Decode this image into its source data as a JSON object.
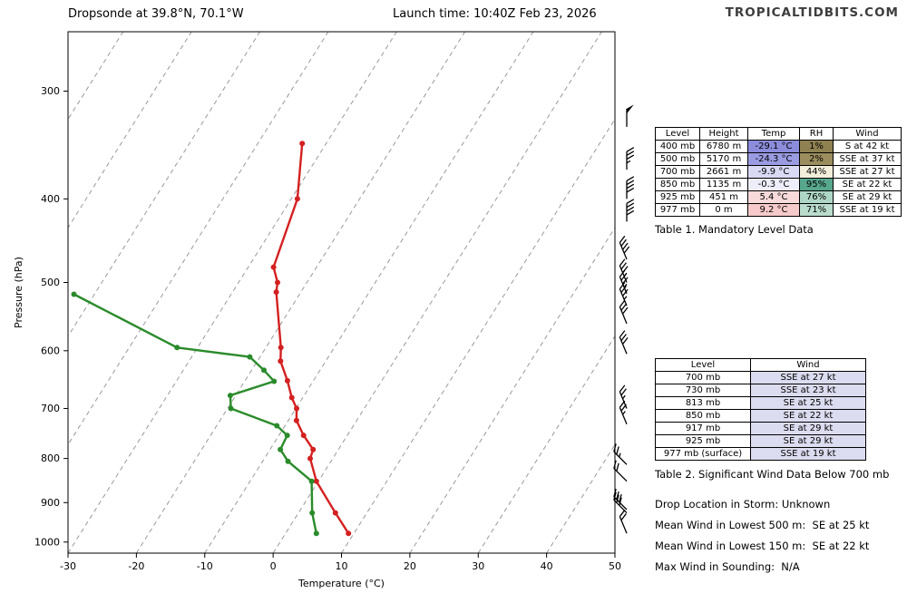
{
  "header": {
    "title": "Dropsonde at 39.8°N, 70.1°W",
    "launch": "Launch time: 10:40Z Feb 23, 2026",
    "brand": "TROPICALTIDBITS.COM"
  },
  "chart_data": {
    "type": "line",
    "subtype": "skew-t-log-p-sounding",
    "xlabel": "Temperature (°C)",
    "ylabel": "Pressure (hPa)",
    "x_ticks": [
      -30,
      -20,
      -10,
      0,
      10,
      20,
      30,
      40,
      50
    ],
    "y_ticks": [
      300,
      400,
      500,
      600,
      700,
      800,
      900,
      1000
    ],
    "xlim": [
      -30,
      50
    ],
    "plim": [
      256,
      1030
    ],
    "y_scale": "log-pressure",
    "grid": "dashed diagonal skewed isotherms every 10 C",
    "isotherm_color": "#999999",
    "series": [
      {
        "name": "temperature",
        "color": "#d42020",
        "points": [
          [
            345,
            -33.5
          ],
          [
            400,
            -29.1
          ],
          [
            480,
            -26.3
          ],
          [
            500,
            -24.3
          ],
          [
            513,
            -23.6
          ],
          [
            595,
            -17.8
          ],
          [
            617,
            -16.6
          ],
          [
            650,
            -13.8
          ],
          [
            680,
            -11.6
          ],
          [
            700,
            -9.9
          ],
          [
            723,
            -8.8
          ],
          [
            752,
            -6.4
          ],
          [
            781,
            -3.7
          ],
          [
            800,
            -3.3
          ],
          [
            850,
            -0.3
          ],
          [
            925,
            5.4
          ],
          [
            977,
            9.2
          ]
        ]
      },
      {
        "name": "dewpoint",
        "color": "#2a8b2a",
        "points": [
          [
            516,
            -53
          ],
          [
            595,
            -33
          ],
          [
            610,
            -21.5
          ],
          [
            632,
            -18.2
          ],
          [
            651,
            -15.7
          ],
          [
            676,
            -20.8
          ],
          [
            700,
            -19.5
          ],
          [
            733,
            -11.2
          ],
          [
            752,
            -8.8
          ],
          [
            781,
            -8.5
          ],
          [
            806,
            -6.3
          ],
          [
            850,
            -1.0
          ],
          [
            925,
            2.0
          ],
          [
            977,
            4.5
          ]
        ]
      }
    ],
    "wind_barbs": [
      {
        "p": 330,
        "dir": "S",
        "spd": 50
      },
      {
        "p": 370,
        "dir": "S",
        "spd": 35
      },
      {
        "p": 400,
        "dir": "S",
        "spd": 42
      },
      {
        "p": 425,
        "dir": "S",
        "spd": 40
      },
      {
        "p": 470,
        "dir": "SSE",
        "spd": 38
      },
      {
        "p": 500,
        "dir": "SSE",
        "spd": 37
      },
      {
        "p": 515,
        "dir": "SSE",
        "spd": 35
      },
      {
        "p": 532,
        "dir": "SSE",
        "spd": 33
      },
      {
        "p": 558,
        "dir": "SSE",
        "spd": 30
      },
      {
        "p": 605,
        "dir": "SSE",
        "spd": 28
      },
      {
        "p": 700,
        "dir": "SSE",
        "spd": 27
      },
      {
        "p": 730,
        "dir": "SSE",
        "spd": 23
      },
      {
        "p": 813,
        "dir": "SE",
        "spd": 25
      },
      {
        "p": 850,
        "dir": "SE",
        "spd": 22
      },
      {
        "p": 917,
        "dir": "SE",
        "spd": 29
      },
      {
        "p": 925,
        "dir": "SE",
        "spd": 29
      },
      {
        "p": 977,
        "dir": "SSE",
        "spd": 19
      }
    ]
  },
  "table1": {
    "title": "Table 1. Mandatory Level Data",
    "headers": [
      "Level",
      "Height",
      "Temp",
      "RH",
      "Wind"
    ],
    "rows": [
      {
        "level": "400 mb",
        "height": "6780 m",
        "temp": "-29.1 °C",
        "temp_bg": "#8c8cdc",
        "rh": "1%",
        "rh_bg": "#8f8152",
        "wind": "S at 42 kt"
      },
      {
        "level": "500 mb",
        "height": "5170 m",
        "temp": "-24.3 °C",
        "temp_bg": "#9b9be2",
        "rh": "2%",
        "rh_bg": "#9c8d5e",
        "wind": "SSE at 37 kt"
      },
      {
        "level": "700 mb",
        "height": "2661 m",
        "temp": "-9.9 °C",
        "temp_bg": "#d9d9f4",
        "rh": "44%",
        "rh_bg": "#f2eeda",
        "wind": "SSE at 27 kt"
      },
      {
        "level": "850 mb",
        "height": "1135 m",
        "temp": "-0.3 °C",
        "temp_bg": "#eeeefa",
        "rh": "95%",
        "rh_bg": "#57a78c",
        "wind": "SE at 22 kt"
      },
      {
        "level": "925 mb",
        "height": "451 m",
        "temp": "5.4 °C",
        "temp_bg": "#f8dada",
        "rh": "76%",
        "rh_bg": "#aed6c6",
        "wind": "SE at 29 kt"
      },
      {
        "level": "977 mb",
        "height": "0 m",
        "temp": "9.2 °C",
        "temp_bg": "#f6caca",
        "rh": "71%",
        "rh_bg": "#b9dccd",
        "wind": "SSE at 19 kt"
      }
    ]
  },
  "table2": {
    "title": "Table 2. Significant Wind Data Below 700 mb",
    "headers": [
      "Level",
      "Wind"
    ],
    "wind_bg": "#dcdcf0",
    "rows": [
      {
        "level": "700 mb",
        "wind": "SSE at 27 kt"
      },
      {
        "level": "730 mb",
        "wind": "SSE at 23 kt"
      },
      {
        "level": "813 mb",
        "wind": "SE at 25 kt"
      },
      {
        "level": "850 mb",
        "wind": "SE at 22 kt"
      },
      {
        "level": "917 mb",
        "wind": "SE at 29 kt"
      },
      {
        "level": "925 mb",
        "wind": "SE at 29 kt"
      },
      {
        "level": "977 mb (surface)",
        "wind": "SSE at 19 kt"
      }
    ]
  },
  "footer_lines": [
    "Drop Location in Storm: Unknown",
    "Mean Wind in Lowest 500 m:  SE at 25 kt",
    "Mean Wind in Lowest 150 m:  SE at 22 kt",
    "Max Wind in Sounding:  N/A"
  ]
}
